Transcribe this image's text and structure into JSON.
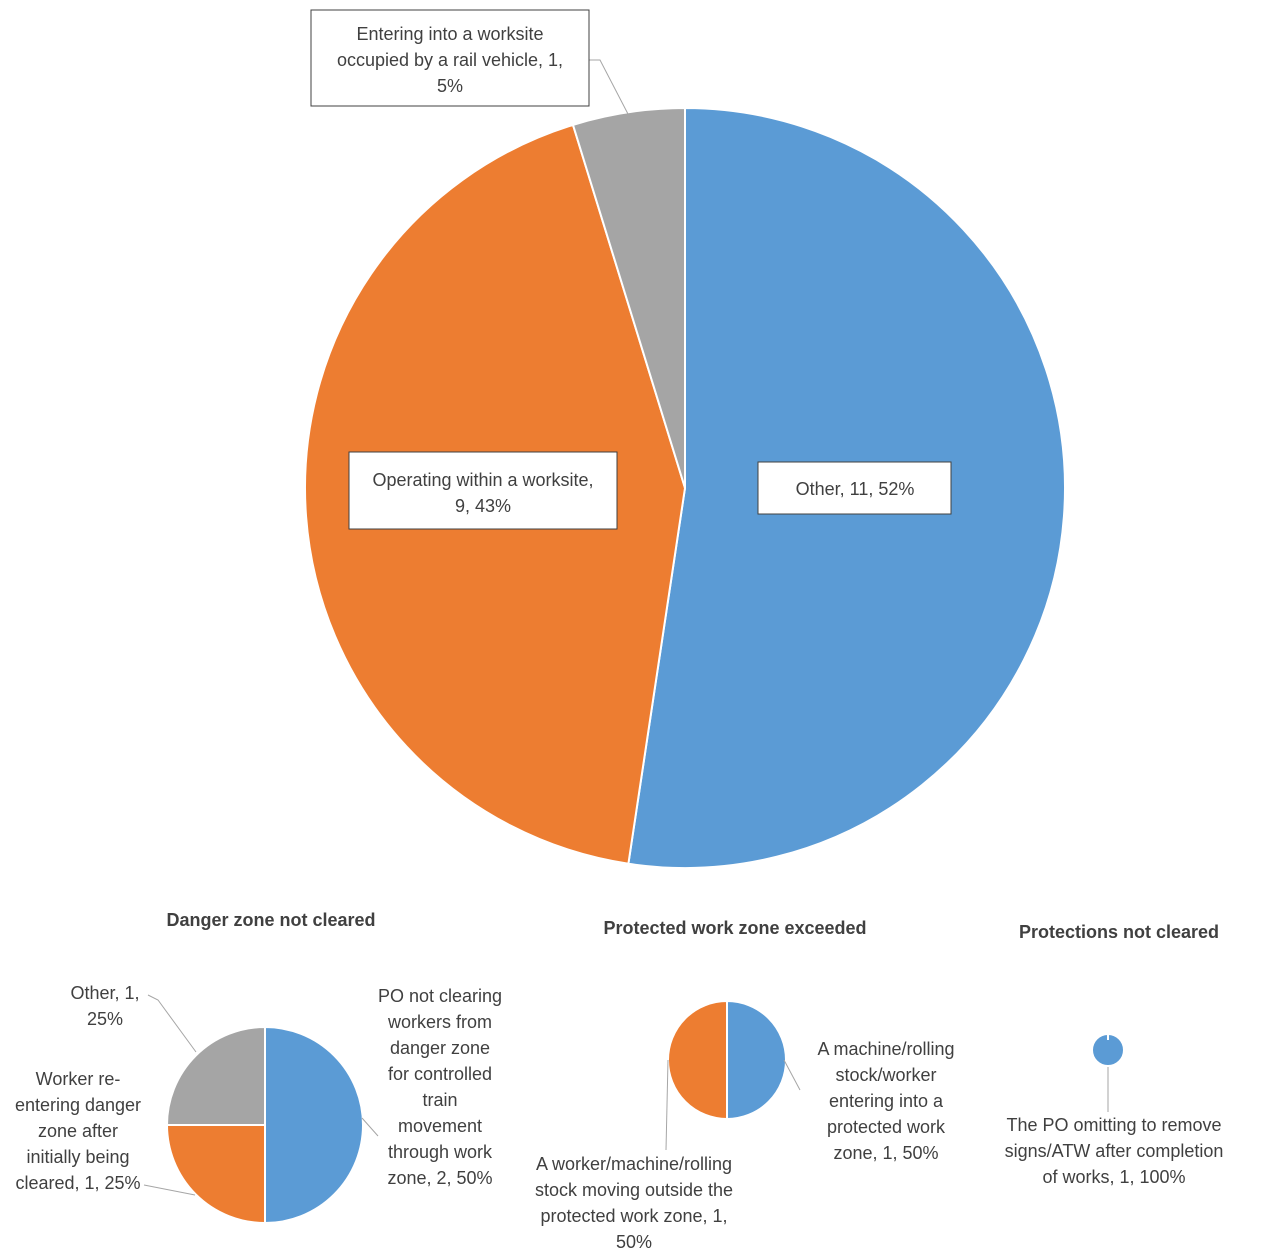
{
  "colors": {
    "blue": "#5B9BD5",
    "orange": "#ED7D31",
    "gray": "#A5A5A5"
  },
  "chart_data": [
    {
      "type": "pie",
      "title": "",
      "slices": [
        {
          "category": "Other",
          "value": 11,
          "percent": "52%",
          "color": "#5B9BD5",
          "label_lines": [
            "Other, 11, 52%"
          ]
        },
        {
          "category": "Operating within a worksite",
          "value": 9,
          "percent": "43%",
          "color": "#ED7D31",
          "label_lines": [
            "Operating within a worksite,",
            "9, 43%"
          ]
        },
        {
          "category": "Entering into a worksite occupied by a rail vehicle",
          "value": 1,
          "percent": "5%",
          "color": "#A5A5A5",
          "label_lines": [
            "Entering into a worksite",
            "occupied by a rail vehicle, 1,",
            "5%"
          ]
        }
      ]
    },
    {
      "type": "pie",
      "title": "Danger zone not cleared",
      "slices": [
        {
          "category": "PO not clearing workers from danger zone for controlled train movement through work zone",
          "value": 2,
          "percent": "50%",
          "color": "#5B9BD5",
          "label_lines": [
            "PO not clearing",
            "workers from",
            "danger zone",
            "for controlled",
            "train",
            "movement",
            "through work",
            "zone, 2, 50%"
          ]
        },
        {
          "category": "Worker re-entering danger zone after initially being cleared",
          "value": 1,
          "percent": "25%",
          "color": "#ED7D31",
          "label_lines": [
            "Worker re-",
            "entering danger",
            "zone after",
            "initially being",
            "cleared, 1, 25%"
          ]
        },
        {
          "category": "Other",
          "value": 1,
          "percent": "25%",
          "color": "#A5A5A5",
          "label_lines": [
            "Other, 1,",
            "25%"
          ]
        }
      ]
    },
    {
      "type": "pie",
      "title": "Protected work zone exceeded",
      "slices": [
        {
          "category": "A machine/rolling stock/worker entering into a protected work zone",
          "value": 1,
          "percent": "50%",
          "color": "#5B9BD5",
          "label_lines": [
            "A machine/rolling",
            "stock/worker",
            "entering into a",
            "protected work",
            "zone, 1, 50%"
          ]
        },
        {
          "category": "A worker/machine/rolling stock moving outside the protected work zone",
          "value": 1,
          "percent": "50%",
          "color": "#ED7D31",
          "label_lines": [
            "A worker/machine/rolling",
            "stock moving outside the",
            "protected work zone, 1,",
            "50%"
          ]
        }
      ]
    },
    {
      "type": "pie",
      "title": "Protections not cleared",
      "slices": [
        {
          "category": "The PO omitting to remove signs/ATW after completion of works",
          "value": 1,
          "percent": "100%",
          "color": "#5B9BD5",
          "label_lines": [
            "The PO omitting to remove",
            "signs/ATW after completion",
            "of works, 1, 100%"
          ]
        }
      ]
    }
  ]
}
